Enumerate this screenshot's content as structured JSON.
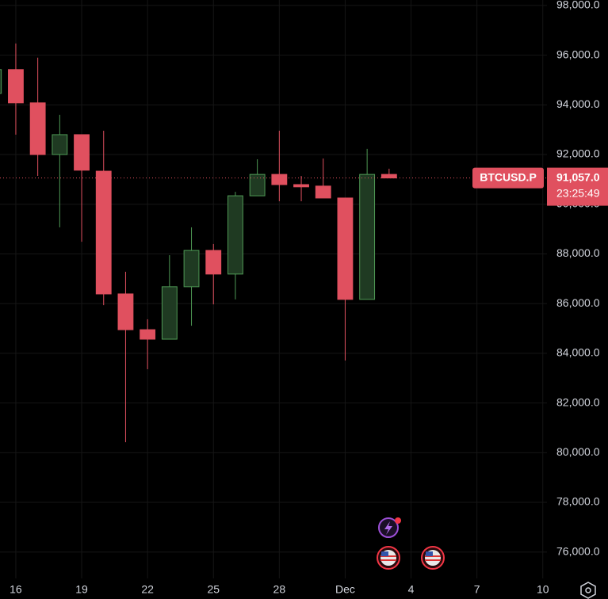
{
  "chart_data": {
    "type": "candlestick",
    "x": [
      15,
      16,
      17,
      18,
      19,
      20,
      21,
      22,
      23,
      24,
      25,
      26,
      27,
      28,
      29,
      30,
      31,
      32,
      33
    ],
    "open": [
      94460,
      95420,
      94080,
      92000,
      92800,
      91330,
      86390,
      84950,
      84570,
      86680,
      88140,
      87190,
      90340,
      91200,
      90790,
      90730,
      90250,
      86170,
      91200
    ],
    "high": [
      95500,
      96470,
      95900,
      93600,
      92800,
      92960,
      87280,
      85370,
      87950,
      89070,
      88400,
      90500,
      91810,
      92960,
      91140,
      91840,
      90250,
      92230,
      91430
    ],
    "low": [
      94400,
      92800,
      91140,
      89070,
      88490,
      85940,
      80420,
      83360,
      84570,
      85110,
      85970,
      86170,
      90340,
      90120,
      90120,
      90250,
      83710,
      86170,
      91050
    ],
    "close": [
      95420,
      94080,
      92000,
      92800,
      91370,
      86390,
      84950,
      84570,
      86680,
      88140,
      87190,
      90340,
      91200,
      90790,
      90700,
      90250,
      86170,
      91200,
      91057
    ],
    "up_color": "#4f9a55",
    "down_color": "#e0505f",
    "xlim": [
      15.28,
      40.19
    ],
    "xticks": [
      16,
      19,
      22,
      25,
      28,
      {
        "value": 31,
        "label": "Dec"
      },
      {
        "value": 34,
        "label": "4"
      },
      {
        "value": 37,
        "label": "7"
      },
      {
        "value": 40,
        "label": "10"
      }
    ],
    "ylim": [
      74940,
      98220
    ],
    "yticks": [
      {
        "value": 76000,
        "label": "76,000.0"
      },
      {
        "value": 78000,
        "label": "78,000.0"
      },
      {
        "value": 80000,
        "label": "80,000.0"
      },
      {
        "value": 82000,
        "label": "82,000.0"
      },
      {
        "value": 84000,
        "label": "84,000.0"
      },
      {
        "value": 86000,
        "label": "86,000.0"
      },
      {
        "value": 88000,
        "label": "88,000.0"
      },
      {
        "value": 90000,
        "label": "90,000.0"
      },
      {
        "value": 92000,
        "label": "92,000.0"
      },
      {
        "value": 94000,
        "label": "94,000.0"
      },
      {
        "value": 96000,
        "label": "96,000.0"
      },
      {
        "value": 98000,
        "label": "98,000.0"
      }
    ],
    "grid": true,
    "symbol": "BTCUSD.P",
    "last_price": {
      "value": 91057,
      "label": "91,057.0"
    },
    "countdown": "23:25:49"
  }
}
